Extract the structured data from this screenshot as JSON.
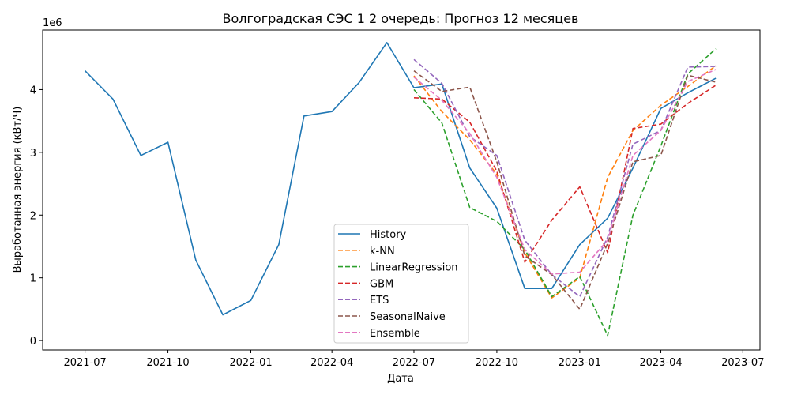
{
  "chart_data": {
    "type": "line",
    "title": "Волгоградская СЭС 1 2 очередь: Прогноз 12 месяцев",
    "xlabel": "Дата",
    "ylabel": "Выработанная энергия (кВт/Ч)",
    "y_offset_label": "1e6",
    "xlim": [
      "2021-05-15",
      "2023-07-20"
    ],
    "ylim": [
      -150000,
      4950000
    ],
    "x_ticks": [
      {
        "date": "2021-07-01",
        "label": "2021-07"
      },
      {
        "date": "2021-10-01",
        "label": "2021-10"
      },
      {
        "date": "2022-01-01",
        "label": "2022-01"
      },
      {
        "date": "2022-04-01",
        "label": "2022-04"
      },
      {
        "date": "2022-07-01",
        "label": "2022-07"
      },
      {
        "date": "2022-10-01",
        "label": "2022-10"
      },
      {
        "date": "2023-01-01",
        "label": "2023-01"
      },
      {
        "date": "2023-04-01",
        "label": "2023-04"
      },
      {
        "date": "2023-07-01",
        "label": "2023-07"
      }
    ],
    "y_ticks": [
      {
        "value": 0,
        "label": "0"
      },
      {
        "value": 1000000,
        "label": "1"
      },
      {
        "value": 2000000,
        "label": "2"
      },
      {
        "value": 3000000,
        "label": "3"
      },
      {
        "value": 4000000,
        "label": "4"
      }
    ],
    "grid": false,
    "legend_position": "bottom-center",
    "series": [
      {
        "name": "History",
        "color": "#1f77b4",
        "dash": "solid",
        "x": [
          "2021-07-01",
          "2021-08-01",
          "2021-09-01",
          "2021-10-01",
          "2021-11-01",
          "2021-12-01",
          "2022-01-01",
          "2022-02-01",
          "2022-03-01",
          "2022-04-01",
          "2022-05-01",
          "2022-06-01",
          "2022-07-01",
          "2022-08-01",
          "2022-09-01",
          "2022-10-01",
          "2022-11-01",
          "2022-12-01",
          "2023-01-01",
          "2023-02-01",
          "2023-03-01",
          "2023-04-01",
          "2023-05-01",
          "2023-06-01"
        ],
        "values": [
          4300000,
          3850000,
          2950000,
          3160000,
          1280000,
          410000,
          640000,
          1530000,
          3580000,
          3650000,
          4110000,
          4750000,
          4030000,
          4090000,
          2750000,
          2110000,
          830000,
          830000,
          1530000,
          1950000,
          2750000,
          3700000,
          3950000,
          4180000
        ]
      },
      {
        "name": "k-NN",
        "color": "#ff7f0e",
        "dash": "dashed",
        "x": [
          "2022-07-01",
          "2022-08-01",
          "2022-09-01",
          "2022-10-01",
          "2022-11-01",
          "2022-12-01",
          "2023-01-01",
          "2023-02-01",
          "2023-03-01",
          "2023-04-01",
          "2023-05-01",
          "2023-06-01"
        ],
        "values": [
          4220000,
          3650000,
          3200000,
          2650000,
          1400000,
          680000,
          1000000,
          2600000,
          3350000,
          3750000,
          4050000,
          4380000
        ]
      },
      {
        "name": "LinearRegression",
        "color": "#2ca02c",
        "dash": "dashed",
        "x": [
          "2022-07-01",
          "2022-08-01",
          "2022-09-01",
          "2022-10-01",
          "2022-11-01",
          "2022-12-01",
          "2023-01-01",
          "2023-02-01",
          "2023-03-01",
          "2023-04-01",
          "2023-05-01",
          "2023-06-01"
        ],
        "values": [
          4000000,
          3470000,
          2120000,
          1900000,
          1450000,
          700000,
          1020000,
          80000,
          2000000,
          3100000,
          4250000,
          4650000
        ]
      },
      {
        "name": "GBM",
        "color": "#d62728",
        "dash": "dashed",
        "x": [
          "2022-07-01",
          "2022-08-01",
          "2022-09-01",
          "2022-10-01",
          "2022-11-01",
          "2022-12-01",
          "2023-01-01",
          "2023-02-01",
          "2023-03-01",
          "2023-04-01",
          "2023-05-01",
          "2023-06-01"
        ],
        "values": [
          3870000,
          3850000,
          3480000,
          2700000,
          1250000,
          1920000,
          2450000,
          1400000,
          3380000,
          3450000,
          3780000,
          4070000
        ]
      },
      {
        "name": "ETS",
        "color": "#9467bd",
        "dash": "dashed",
        "x": [
          "2022-07-01",
          "2022-08-01",
          "2022-09-01",
          "2022-10-01",
          "2022-11-01",
          "2022-12-01",
          "2023-01-01",
          "2023-02-01",
          "2023-03-01",
          "2023-04-01",
          "2023-05-01",
          "2023-06-01"
        ],
        "values": [
          4480000,
          4100000,
          3250000,
          2950000,
          1600000,
          1050000,
          700000,
          1650000,
          3130000,
          3350000,
          4360000,
          4370000
        ]
      },
      {
        "name": "SeasonalNaive",
        "color": "#8c564b",
        "dash": "dashed",
        "x": [
          "2022-07-01",
          "2022-08-01",
          "2022-09-01",
          "2022-10-01",
          "2022-11-01",
          "2022-12-01",
          "2023-01-01",
          "2023-02-01",
          "2023-03-01",
          "2023-04-01",
          "2023-05-01",
          "2023-06-01"
        ],
        "values": [
          4300000,
          3970000,
          4040000,
          2850000,
          1350000,
          1050000,
          500000,
          1550000,
          2850000,
          2950000,
          4230000,
          4120000
        ]
      },
      {
        "name": "Ensemble",
        "color": "#e377c2",
        "dash": "dashed",
        "x": [
          "2022-07-01",
          "2022-08-01",
          "2022-09-01",
          "2022-10-01",
          "2022-11-01",
          "2022-12-01",
          "2023-01-01",
          "2023-02-01",
          "2023-03-01",
          "2023-04-01",
          "2023-05-01",
          "2023-06-01"
        ],
        "values": [
          4200000,
          3830000,
          3300000,
          2600000,
          1450000,
          1060000,
          1090000,
          1600000,
          2950000,
          3350000,
          4130000,
          4320000
        ]
      }
    ]
  }
}
